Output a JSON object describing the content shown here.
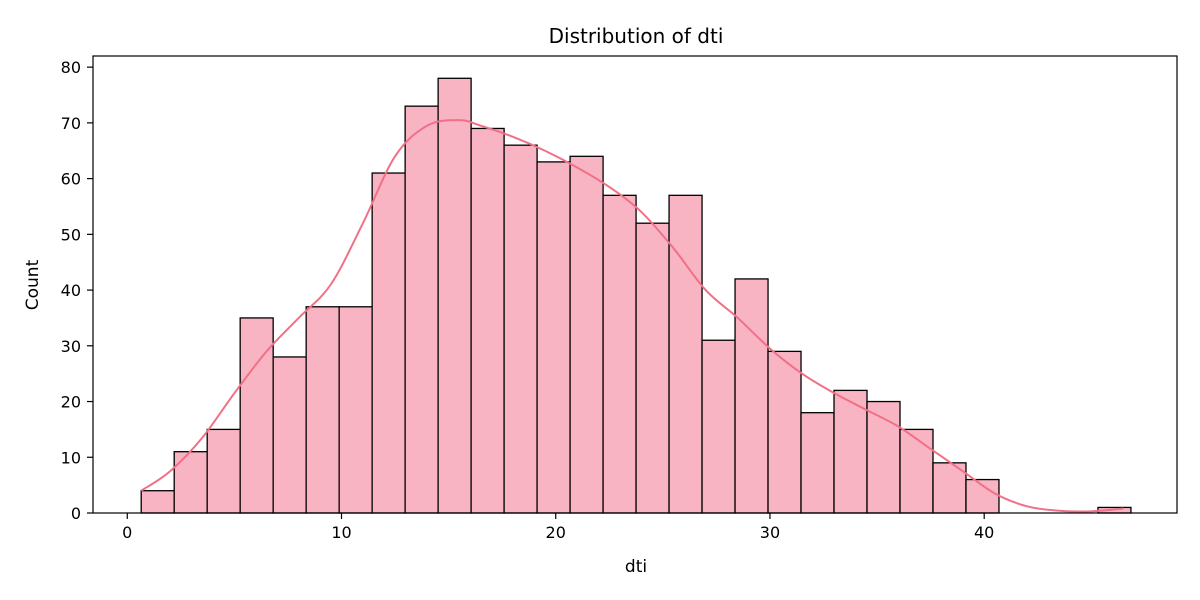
{
  "chart_data": {
    "type": "bar",
    "title": "Distribution of dti",
    "xlabel": "dti",
    "ylabel": "Count",
    "xlim": [
      -1.6,
      49
    ],
    "ylim": [
      0,
      82
    ],
    "xticks": [
      0,
      10,
      20,
      30,
      40
    ],
    "yticks": [
      0,
      10,
      20,
      30,
      40,
      50,
      60,
      70,
      80
    ],
    "bin_start": 0.65,
    "bin_width": 1.54,
    "counts": [
      4,
      11,
      15,
      35,
      28,
      37,
      37,
      61,
      73,
      78,
      69,
      66,
      63,
      64,
      57,
      52,
      57,
      31,
      42,
      29,
      18,
      22,
      20,
      15,
      9,
      6,
      0,
      0,
      0,
      1
    ],
    "kde_x": [
      0.65,
      2,
      3.5,
      5,
      6.5,
      8,
      9.5,
      11,
      12.5,
      14,
      15.5,
      16.5,
      18,
      19.5,
      21,
      22.5,
      24,
      25.5,
      27,
      28.5,
      30,
      31.5,
      33,
      34.5,
      36,
      37.5,
      39,
      40.5,
      42,
      43.5,
      45,
      46.5
    ],
    "kde_y": [
      4,
      7.5,
      13.5,
      21.5,
      29,
      35,
      41,
      52,
      64,
      69.5,
      70.5,
      69.5,
      67.5,
      65,
      62,
      58.5,
      54,
      47.5,
      40,
      35,
      29.5,
      25,
      21.5,
      18.5,
      15.5,
      11.5,
      7.5,
      3.5,
      1.2,
      0.4,
      0.3,
      0.8
    ],
    "bar_color": "#f9b4c3",
    "bar_edge_color": "#000000",
    "kde_color": "#f07087",
    "grid": false
  }
}
